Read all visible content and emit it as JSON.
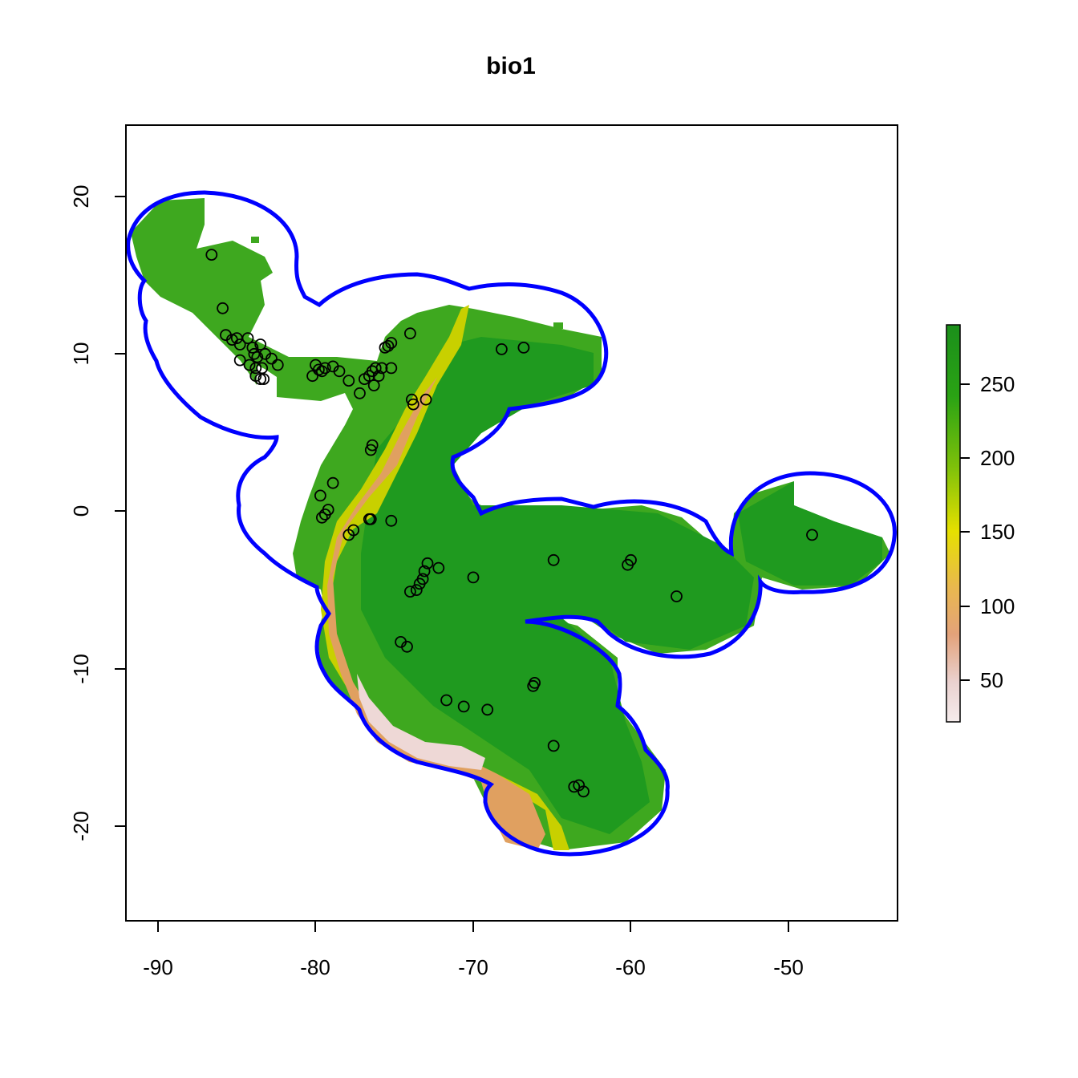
{
  "plot": {
    "title": "bio1",
    "x_ticks": [
      "-90",
      "-80",
      "-70",
      "-60",
      "-50"
    ],
    "y_ticks": [
      "20",
      "10",
      "0",
      "-10",
      "-20"
    ],
    "colors": {
      "boundary": "#0000ff",
      "raster_high": "#1f9a1f",
      "raster_mid": "#3ea81f",
      "raster_yellow": "#d9d400",
      "raster_orange": "#e0a060",
      "raster_low": "#f2e4e4",
      "points": "#000000"
    }
  },
  "legend": {
    "ticks": [
      "250",
      "200",
      "150",
      "100",
      "50"
    ],
    "gradient_colors": [
      "#1b8f1b",
      "#2aa314",
      "#7fc10a",
      "#e6e000",
      "#e9b84e",
      "#e3a27a",
      "#ead1cf",
      "#f5ecec"
    ]
  },
  "chart_data": {
    "type": "scatter",
    "title": "bio1",
    "xlim": [
      -92,
      -43
    ],
    "ylim": [
      -26,
      24.5
    ],
    "x_ticks": [
      -90,
      -80,
      -70,
      -60,
      -50
    ],
    "y_ticks": [
      20,
      10,
      0,
      -10,
      -20
    ],
    "legend": {
      "placement": "right",
      "range": [
        25,
        290
      ],
      "ticks": [
        250,
        200,
        150,
        100,
        50
      ]
    },
    "points": [
      [
        -86.6,
        16.3
      ],
      [
        -85.9,
        12.9
      ],
      [
        -85.7,
        11.2
      ],
      [
        -85.3,
        10.9
      ],
      [
        -85.0,
        11.0
      ],
      [
        -84.8,
        10.6
      ],
      [
        -84.3,
        11.0
      ],
      [
        -84.0,
        10.4
      ],
      [
        -83.9,
        10.0
      ],
      [
        -83.7,
        9.8
      ],
      [
        -83.5,
        10.6
      ],
      [
        -83.2,
        10.0
      ],
      [
        -82.8,
        9.7
      ],
      [
        -82.4,
        9.3
      ],
      [
        -84.8,
        9.6
      ],
      [
        -84.2,
        9.3
      ],
      [
        -83.8,
        9.1
      ],
      [
        -83.4,
        9.1
      ],
      [
        -83.8,
        8.6
      ],
      [
        -83.5,
        8.4
      ],
      [
        -83.3,
        8.4
      ],
      [
        -80.0,
        9.3
      ],
      [
        -79.8,
        9.0
      ],
      [
        -79.6,
        8.9
      ],
      [
        -79.4,
        9.1
      ],
      [
        -78.9,
        9.2
      ],
      [
        -78.5,
        8.9
      ],
      [
        -80.2,
        8.6
      ],
      [
        -77.9,
        8.3
      ],
      [
        -77.2,
        7.5
      ],
      [
        -76.9,
        8.4
      ],
      [
        -76.6,
        8.6
      ],
      [
        -76.4,
        8.9
      ],
      [
        -76.2,
        9.1
      ],
      [
        -76.0,
        8.6
      ],
      [
        -75.8,
        9.1
      ],
      [
        -75.6,
        10.4
      ],
      [
        -75.4,
        10.5
      ],
      [
        -75.2,
        10.7
      ],
      [
        -75.2,
        9.1
      ],
      [
        -76.3,
        8.0
      ],
      [
        -74.0,
        11.3
      ],
      [
        -73.9,
        7.1
      ],
      [
        -73.8,
        6.8
      ],
      [
        -73.0,
        7.1
      ],
      [
        -76.5,
        3.9
      ],
      [
        -76.4,
        4.2
      ],
      [
        -79.7,
        1.0
      ],
      [
        -78.9,
        1.8
      ],
      [
        -79.2,
        0.1
      ],
      [
        -79.4,
        -0.2
      ],
      [
        -79.6,
        -0.4
      ],
      [
        -77.6,
        -1.2
      ],
      [
        -77.9,
        -1.5
      ],
      [
        -76.6,
        -0.5
      ],
      [
        -76.5,
        -0.5
      ],
      [
        -75.2,
        -0.6
      ],
      [
        -74.0,
        -5.1
      ],
      [
        -73.6,
        -5.0
      ],
      [
        -73.4,
        -4.6
      ],
      [
        -73.2,
        -4.3
      ],
      [
        -73.1,
        -3.8
      ],
      [
        -72.9,
        -3.3
      ],
      [
        -72.2,
        -3.6
      ],
      [
        -70.0,
        -4.2
      ],
      [
        -64.9,
        -3.1
      ],
      [
        -60.2,
        -3.4
      ],
      [
        -60.0,
        -3.1
      ],
      [
        -57.1,
        -5.4
      ],
      [
        -48.5,
        -1.5
      ],
      [
        -68.2,
        10.3
      ],
      [
        -66.8,
        10.4
      ],
      [
        -74.6,
        -8.3
      ],
      [
        -74.2,
        -8.6
      ],
      [
        -71.7,
        -12.0
      ],
      [
        -70.6,
        -12.4
      ],
      [
        -69.1,
        -12.6
      ],
      [
        -66.2,
        -11.1
      ],
      [
        -66.1,
        -10.9
      ],
      [
        -64.9,
        -14.9
      ],
      [
        -63.6,
        -17.5
      ],
      [
        -63.3,
        -17.4
      ],
      [
        -63.0,
        -17.8
      ]
    ]
  }
}
